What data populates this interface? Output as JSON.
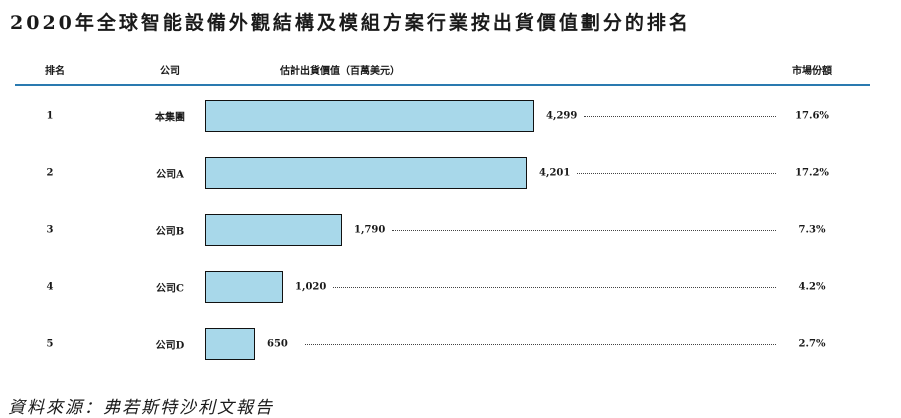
{
  "chart_data": {
    "type": "bar",
    "orientation": "horizontal",
    "title": "2020年全球智能設備外觀結構及模組方案行業按出貨價值劃分的排名",
    "columns": {
      "rank": "排名",
      "company": "公司",
      "value": "估計出貨價值（百萬美元）",
      "share": "市場份額"
    },
    "ranks": [
      "1",
      "2",
      "3",
      "4",
      "5"
    ],
    "categories": [
      "本集團",
      "公司A",
      "公司B",
      "公司C",
      "公司D"
    ],
    "values": [
      4299,
      4201,
      1790,
      1020,
      650
    ],
    "value_labels": [
      "4,299",
      "4,201",
      "1,790",
      "1,020",
      "650"
    ],
    "shares": [
      "17.6%",
      "17.2%",
      "7.3%",
      "4.2%",
      "2.7%"
    ],
    "xlim": [
      0,
      4299
    ],
    "bar_color": "#a8d8ea",
    "grid": false,
    "legend": "none",
    "source": "資料來源：弗若斯特沙利文報告"
  }
}
